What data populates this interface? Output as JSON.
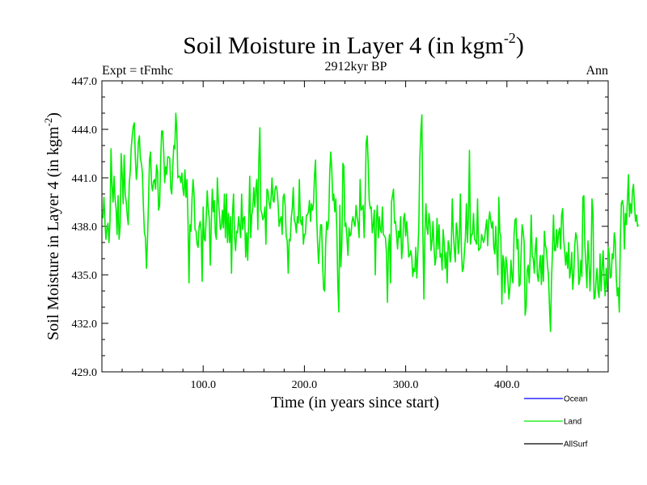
{
  "header": {
    "title_main": "Soil Moisture in Layer 4 (in kgm",
    "title_exp": "-2",
    "title_close": ")",
    "subtitle": "2912kyr BP",
    "expt": "Expt = tFmhc",
    "period": "Ann"
  },
  "chart_data": {
    "type": "line",
    "title": "Soil Moisture in Layer 4 (in kgm-2)",
    "xlabel": "Time (in years since start)",
    "ylabel_main": "Soil Moisture in Layer 4 (in kgm",
    "ylabel_exp": "-2",
    "ylabel_close": ")",
    "xlim": [
      0,
      500
    ],
    "ylim": [
      429,
      447
    ],
    "xticks": [
      100,
      200,
      300,
      400
    ],
    "xtick_labels": [
      "100.0",
      "200.0",
      "300.0",
      "400.0"
    ],
    "yticks": [
      429,
      432,
      435,
      438,
      441,
      444,
      447
    ],
    "ytick_labels": [
      "429.0",
      "432.0",
      "435.0",
      "438.0",
      "441.0",
      "444.0",
      "447.0"
    ],
    "legend": {
      "position": "bottom-right",
      "entries": [
        {
          "name": "Ocean",
          "color": "#0000ff"
        },
        {
          "name": "Land",
          "color": "#00ee00"
        },
        {
          "name": "AllSurf",
          "color": "#000000"
        }
      ]
    },
    "series": [
      {
        "name": "Land",
        "color": "#00ee00",
        "x_start": 1,
        "x_step": 1,
        "values": [
          438.5,
          439.8,
          438.3,
          437.2,
          437.9,
          438.2,
          437.0,
          438.3,
          442.8,
          440.5,
          439.5,
          441.1,
          439.7,
          439.1,
          437.5,
          439.9,
          437.2,
          438.0,
          442.5,
          441.2,
          439.4,
          442.4,
          440.0,
          439.5,
          438.7,
          438.1,
          440.6,
          441.4,
          442.9,
          443.6,
          444.2,
          444.4,
          442.3,
          440.9,
          441.7,
          443.2,
          443.6,
          442.2,
          441.9,
          441.3,
          439.2,
          437.6,
          437.3,
          435.4,
          437.1,
          439.4,
          442.1,
          442.6,
          440.6,
          440.2,
          440.8,
          440.9,
          440.3,
          441.8,
          441.4,
          439.0,
          439.3,
          442.0,
          443.9,
          443.9,
          442.7,
          440.7,
          441.7,
          441.2,
          442.3,
          442.3,
          442.2,
          440.3,
          440.0,
          441.7,
          443.0,
          442.8,
          445.0,
          443.9,
          441.0,
          441.1,
          441.1,
          440.7,
          441.3,
          440.3,
          439.9,
          441.5,
          439.8,
          440.9,
          438.4,
          434.5,
          438.1,
          437.7,
          439.7,
          440.9,
          440.0,
          437.8,
          437.7,
          436.9,
          436.7,
          438.0,
          438.3,
          437.7,
          434.6,
          439.2,
          437.2,
          437.1,
          438.5,
          440.2,
          439.1,
          438.5,
          435.6,
          438.1,
          440.3,
          438.9,
          439.6,
          437.6,
          437.2,
          441.0,
          439.6,
          438.8,
          437.8,
          438.0,
          439.0,
          437.9,
          440.0,
          437.3,
          440.0,
          437.0,
          438.8,
          437.0,
          438.6,
          435.1,
          438.8,
          440.0,
          437.4,
          436.5,
          437.7,
          437.6,
          438.6,
          438.0,
          437.3,
          440.0,
          437.8,
          438.5,
          438.6,
          436.1,
          437.6,
          435.9,
          438.3,
          441.1,
          437.3,
          438.7,
          439.1,
          440.4,
          439.2,
          440.3,
          440.9,
          437.8,
          442.1,
          444.1,
          439.0,
          438.8,
          438.4,
          438.6,
          439.2,
          436.9,
          440.3,
          440.2,
          439.5,
          439.1,
          439.7,
          441.0,
          439.6,
          439.5,
          440.3,
          440.5,
          440.2,
          439.4,
          438.0,
          438.4,
          438.6,
          437.5,
          439.8,
          440.0,
          439.3,
          437.4,
          437.1,
          435.1,
          437.2,
          437.1,
          438.5,
          439.1,
          440.4,
          438.4,
          438.2,
          437.6,
          438.6,
          438.2,
          440.9,
          438.4,
          438.1,
          438.6,
          436.9,
          437.5,
          437.5,
          438.7,
          438.7,
          438.9,
          439.6,
          438.3,
          439.4,
          439.0,
          439.4,
          441.2,
          442.1,
          438.8,
          437.0,
          435.7,
          436.9,
          438.1,
          438.1,
          435.6,
          434.1,
          434.0,
          436.9,
          438.3,
          437.8,
          438.4,
          441.3,
          442.6,
          441.6,
          439.6,
          440.0,
          438.9,
          439.7,
          437.8,
          434.4,
          432.7,
          439.3,
          435.5,
          436.9,
          441.9,
          441.7,
          438.0,
          438.2,
          437.3,
          436.2,
          437.9,
          437.4,
          437.5,
          438.3,
          438.6,
          438.2,
          438.0,
          439.3,
          438.6,
          438.2,
          437.3,
          440.9,
          439.0,
          439.1,
          439.3,
          437.3,
          439.6,
          443.2,
          443.6,
          441.9,
          439.6,
          439.1,
          439.2,
          437.6,
          438.1,
          439.0,
          435.0,
          438.3,
          439.3,
          437.3,
          438.6,
          437.8,
          437.6,
          439.2,
          437.5,
          437.4,
          437.3,
          436.4,
          433.3,
          436.6,
          437.5,
          434.5,
          439.5,
          439.9,
          440.3,
          438.2,
          438.3,
          437.5,
          436.6,
          437.7,
          437.3,
          438.6,
          436.0,
          436.7,
          438.5,
          438.8,
          437.4,
          438.3,
          437.4,
          436.1,
          436.2,
          436.5,
          436.1,
          434.9,
          435.4,
          435.2,
          436.7,
          434.8,
          436.3,
          438.1,
          442.2,
          443.9,
          444.9,
          437.5,
          433.5,
          437.5,
          439.4,
          437.9,
          437.5,
          438.8,
          438.2,
          436.5,
          437.1,
          438.3,
          436.7,
          435.6,
          436.1,
          438.5,
          436.6,
          438.1,
          436.1,
          436.3,
          435.3,
          437.8,
          437.0,
          435.4,
          436.4,
          434.5,
          437.1,
          436.8,
          435.8,
          436.5,
          439.7,
          437.7,
          436.6,
          435.8,
          438.2,
          437.7,
          436.3,
          437.2,
          440.0,
          436.6,
          435.2,
          435.4,
          436.4,
          437.3,
          439.4,
          437.0,
          438.6,
          442.7,
          436.9,
          437.5,
          437.5,
          438.8,
          437.2,
          437.1,
          436.9,
          439.7,
          436.5,
          436.6,
          436.7,
          437.5,
          437.2,
          437.0,
          437.3,
          437.9,
          438.4,
          436.8,
          438.3,
          438.9,
          438.3,
          437.9,
          438.3,
          436.7,
          436.3,
          438.0,
          436.4,
          435.0,
          439.8,
          437.6,
          437.4,
          433.2,
          436.2,
          435.8,
          433.9,
          436.1,
          435.6,
          434.6,
          433.5,
          434.3,
          435.9,
          434.9,
          434.5,
          437.4,
          438.4,
          438.5,
          436.6,
          437.2,
          434.3,
          434.4,
          436.3,
          438.1,
          437.7,
          437.0,
          432.5,
          433.0,
          435.3,
          435.6,
          434.5,
          436.2,
          438.7,
          436.2,
          436.0,
          435.1,
          436.6,
          437.3,
          435.0,
          434.6,
          435.5,
          436.2,
          434.4,
          436.2,
          434.6,
          437.7,
          436.8,
          436.6,
          435.6,
          435.0,
          433.1,
          431.5,
          434.6,
          436.5,
          438.7,
          436.5,
          436.5,
          437.8,
          436.7,
          437.6,
          437.9,
          436.6,
          438.7,
          439.1,
          437.2,
          436.5,
          435.6,
          436.4,
          435.4,
          437.0,
          434.8,
          435.3,
          436.4,
          434.1,
          435.0,
          436.8,
          437.6,
          437.3,
          436.5,
          434.4,
          434.7,
          435.9,
          434.9,
          439.8,
          439.9,
          436.8,
          435.6,
          434.2,
          437.1,
          436.0,
          434.0,
          435.5,
          439.7,
          438.9,
          433.5,
          433.6,
          434.7,
          435.4,
          434.0,
          433.6,
          436.3,
          434.0,
          435.4,
          436.5,
          434.7,
          433.7,
          435.4,
          434.1,
          436.7,
          436.3,
          434.8,
          434.9,
          436.3,
          436.0,
          437.6,
          437.1,
          434.8,
          433.7,
          434.2,
          432.7,
          437.1,
          439.4,
          439.6,
          439.2,
          436.6,
          438.8,
          438.1,
          439.6,
          441.2,
          438.6,
          439.4,
          438.8,
          440.2,
          440.6,
          439.3,
          438.3,
          438.7,
          438.0,
          438.1
        ]
      }
    ]
  }
}
